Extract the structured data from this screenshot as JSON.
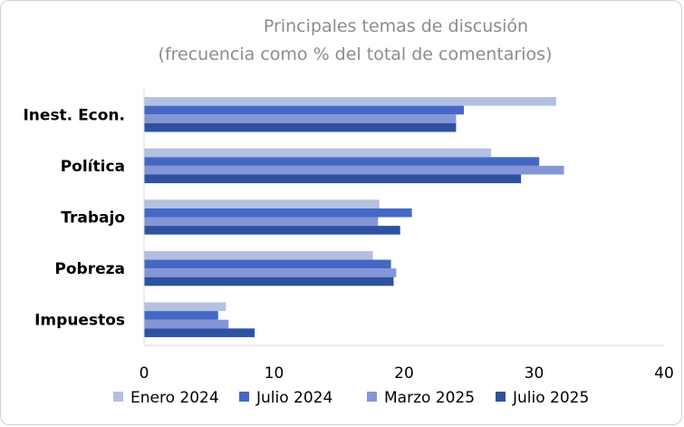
{
  "chart_data": {
    "type": "bar",
    "orientation": "horizontal",
    "title": "Principales temas de discusión",
    "subtitle": "(frecuencia como % del total de comentarios)",
    "xlabel": "",
    "ylabel": "",
    "xlim": [
      0,
      40
    ],
    "ticks": [
      "0",
      "10",
      "20",
      "30",
      "40"
    ],
    "grid": false,
    "legend_position": "bottom",
    "categories": [
      "Inest. Econ.",
      "Política",
      "Trabajo",
      "Pobreza",
      "Impuestos"
    ],
    "series": [
      {
        "name": "Enero 2024",
        "color": "#b4c0e2",
        "values": [
          31.7,
          26.7,
          18.1,
          17.6,
          6.3
        ]
      },
      {
        "name": "Julio 2024",
        "color": "#4468c4",
        "values": [
          24.6,
          30.4,
          20.6,
          19.0,
          5.7
        ]
      },
      {
        "name": "Marzo 2025",
        "color": "#8396d6",
        "values": [
          24.0,
          32.3,
          18.0,
          19.4,
          6.5
        ]
      },
      {
        "name": "Julio 2025",
        "color": "#2f52a0",
        "values": [
          24.0,
          29.0,
          19.7,
          19.2,
          8.5
        ]
      }
    ]
  }
}
